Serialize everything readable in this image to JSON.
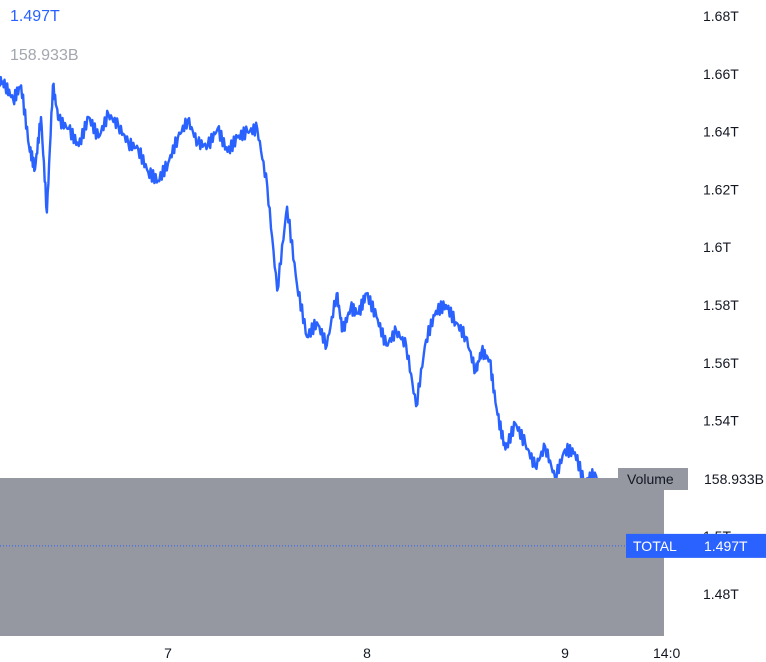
{
  "header": {
    "last_value": "1.497T",
    "volume_value": "158.933B"
  },
  "colors": {
    "line": "#2962ff",
    "volume_overlay": "#9598a1",
    "axis_text": "#131722",
    "badge": "#2962ff",
    "header_volume": "#a3a6ae"
  },
  "badges": {
    "volume_label": "Volume",
    "volume_value": "158.933B",
    "series_label": "TOTAL",
    "series_value": "1.497T"
  },
  "chart_data": {
    "type": "line",
    "series": [
      {
        "name": "TOTAL",
        "x": [
          6.0,
          6.05,
          6.1,
          6.15,
          6.18,
          6.22,
          6.26,
          6.3,
          6.33,
          6.36,
          6.39,
          6.42,
          6.45,
          6.5,
          6.55,
          6.6,
          6.65,
          6.7,
          6.75,
          6.8,
          6.85,
          6.9,
          6.95,
          7.0,
          7.05,
          7.1,
          7.15,
          7.2,
          7.25,
          7.3,
          7.35,
          7.4,
          7.45,
          7.5,
          7.55,
          7.6,
          7.65,
          7.7,
          7.75,
          7.8,
          7.85,
          7.88,
          7.92,
          7.96,
          8.0,
          8.05,
          8.1,
          8.15,
          8.2,
          8.25,
          8.3,
          8.35,
          8.4,
          8.45,
          8.5,
          8.55,
          8.58,
          8.62,
          8.66,
          8.7,
          8.75,
          8.8,
          8.85,
          8.9,
          8.95,
          9.0,
          9.05,
          9.1,
          9.15,
          9.2,
          9.25,
          9.28,
          9.32,
          9.36,
          9.4,
          9.44,
          9.48
        ],
        "values": [
          1.658,
          1.659,
          1.662,
          1.658,
          1.656,
          1.651,
          1.656,
          1.635,
          1.627,
          1.645,
          1.612,
          1.656,
          1.644,
          1.641,
          1.635,
          1.645,
          1.638,
          1.646,
          1.642,
          1.636,
          1.634,
          1.626,
          1.623,
          1.629,
          1.638,
          1.644,
          1.636,
          1.635,
          1.641,
          1.633,
          1.638,
          1.64,
          1.641,
          1.621,
          1.585,
          1.614,
          1.587,
          1.569,
          1.574,
          1.566,
          1.584,
          1.571,
          1.579,
          1.577,
          1.584,
          1.576,
          1.566,
          1.571,
          1.566,
          1.545,
          1.568,
          1.578,
          1.58,
          1.574,
          1.569,
          1.557,
          1.564,
          1.561,
          1.542,
          1.53,
          1.539,
          1.532,
          1.524,
          1.531,
          1.52,
          1.53,
          1.529,
          1.518,
          1.522,
          1.51,
          1.505,
          1.495,
          1.489,
          1.484,
          1.49,
          1.494,
          1.497
        ]
      }
    ],
    "x_ticks": [
      7,
      8,
      9,
      14
    ],
    "x_tick_labels": [
      "7",
      "8",
      "9",
      "14:0"
    ],
    "ylim": [
      1.466,
      1.686
    ],
    "y_ticks": [
      1.48,
      1.5,
      1.54,
      1.56,
      1.58,
      1.6,
      1.62,
      1.64,
      1.66,
      1.68
    ],
    "y_tick_labels": [
      "1.48T",
      "1.5T",
      "1.54T",
      "1.56T",
      "1.58T",
      "1.6T",
      "1.62T",
      "1.64T",
      "1.66T",
      "1.68T"
    ],
    "last_value": 1.497,
    "grid": false
  }
}
